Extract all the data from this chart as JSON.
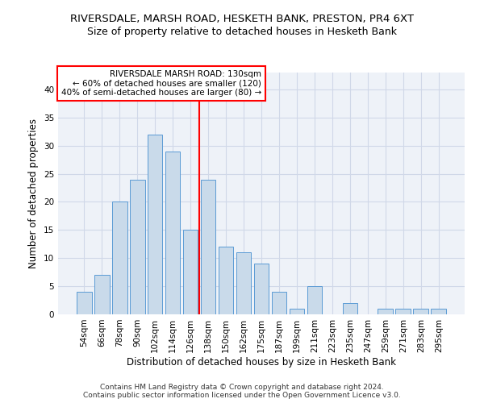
{
  "title1": "RIVERSDALE, MARSH ROAD, HESKETH BANK, PRESTON, PR4 6XT",
  "title2": "Size of property relative to detached houses in Hesketh Bank",
  "xlabel": "Distribution of detached houses by size in Hesketh Bank",
  "ylabel": "Number of detached properties",
  "footer1": "Contains HM Land Registry data © Crown copyright and database right 2024.",
  "footer2": "Contains public sector information licensed under the Open Government Licence v3.0.",
  "bar_labels": [
    "54sqm",
    "66sqm",
    "78sqm",
    "90sqm",
    "102sqm",
    "114sqm",
    "126sqm",
    "138sqm",
    "150sqm",
    "162sqm",
    "175sqm",
    "187sqm",
    "199sqm",
    "211sqm",
    "223sqm",
    "235sqm",
    "247sqm",
    "259sqm",
    "271sqm",
    "283sqm",
    "295sqm"
  ],
  "bar_values": [
    4,
    7,
    20,
    24,
    32,
    29,
    15,
    24,
    12,
    11,
    9,
    4,
    1,
    5,
    0,
    2,
    0,
    1,
    1,
    1,
    1
  ],
  "bar_color": "#c9daea",
  "bar_edge_color": "#5b9bd5",
  "annotation_box_text": [
    "RIVERSDALE MARSH ROAD: 130sqm",
    "← 60% of detached houses are smaller (120)",
    "40% of semi-detached houses are larger (80) →"
  ],
  "annotation_box_color": "white",
  "annotation_box_edge_color": "red",
  "annotation_line_color": "red",
  "ylim": [
    0,
    43
  ],
  "yticks": [
    0,
    5,
    10,
    15,
    20,
    25,
    30,
    35,
    40
  ],
  "grid_color": "#d0d8e8",
  "bg_color": "#eef2f8",
  "title1_fontsize": 9.5,
  "title2_fontsize": 9,
  "xlabel_fontsize": 8.5,
  "ylabel_fontsize": 8.5,
  "tick_fontsize": 7.5,
  "footer_fontsize": 6.5,
  "ann_fontsize": 7.5
}
